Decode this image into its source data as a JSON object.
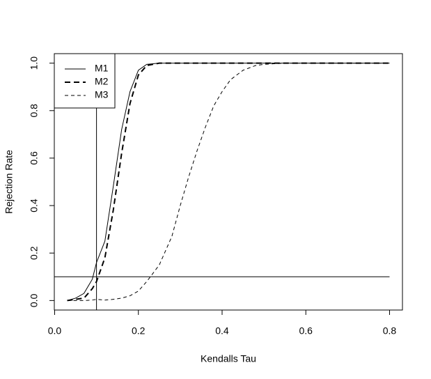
{
  "chart_data": {
    "type": "line",
    "x_label": "Kendalls Tau",
    "y_label": "Rejection Rate",
    "x": [
      0.03,
      0.05,
      0.07,
      0.09,
      0.1,
      0.12,
      0.14,
      0.16,
      0.18,
      0.2,
      0.22,
      0.25,
      0.28,
      0.3,
      0.32,
      0.34,
      0.36,
      0.38,
      0.4,
      0.42,
      0.45,
      0.48,
      0.5,
      0.55,
      0.6,
      0.7,
      0.8
    ],
    "series": [
      {
        "name": "M1",
        "color": "#000000",
        "linestyle": "solid",
        "linewidth": 1,
        "values": [
          0,
          0.01,
          0.03,
          0.09,
          0.16,
          0.25,
          0.48,
          0.72,
          0.88,
          0.97,
          0.995,
          1,
          1,
          1,
          1,
          1,
          1,
          1,
          1,
          1,
          1,
          1,
          1,
          1,
          1,
          1,
          1
        ]
      },
      {
        "name": "M2",
        "color": "#000000",
        "linestyle": "dashed",
        "linewidth": 2,
        "values": [
          0,
          0.005,
          0.01,
          0.05,
          0.08,
          0.18,
          0.38,
          0.62,
          0.83,
          0.95,
          0.99,
          1,
          1,
          1,
          1,
          1,
          1,
          1,
          1,
          1,
          1,
          1,
          1,
          1,
          1,
          1,
          1
        ]
      },
      {
        "name": "M3",
        "color": "#000000",
        "linestyle": "dashed",
        "linewidth": 1,
        "values": [
          0,
          0,
          0,
          0.002,
          0.005,
          0.002,
          0.005,
          0.01,
          0.02,
          0.04,
          0.08,
          0.15,
          0.27,
          0.4,
          0.52,
          0.63,
          0.73,
          0.82,
          0.88,
          0.93,
          0.97,
          0.99,
          0.995,
          1,
          1,
          1,
          1
        ]
      }
    ],
    "hline": 0.1,
    "vline": 0.1,
    "xlim": [
      -0.0008,
      0.8308
    ],
    "xticks": [
      {
        "value": 0,
        "label": "0.0"
      },
      0.2,
      0.4,
      0.6,
      0.8
    ],
    "ylim": [
      -0.04,
      1.04
    ],
    "yticks": [
      {
        "value": 0,
        "label": "0.0"
      },
      0.2,
      0.4,
      0.6,
      0.8,
      {
        "value": 1,
        "label": "1.0"
      }
    ],
    "legend": "top-left",
    "grid": false
  }
}
